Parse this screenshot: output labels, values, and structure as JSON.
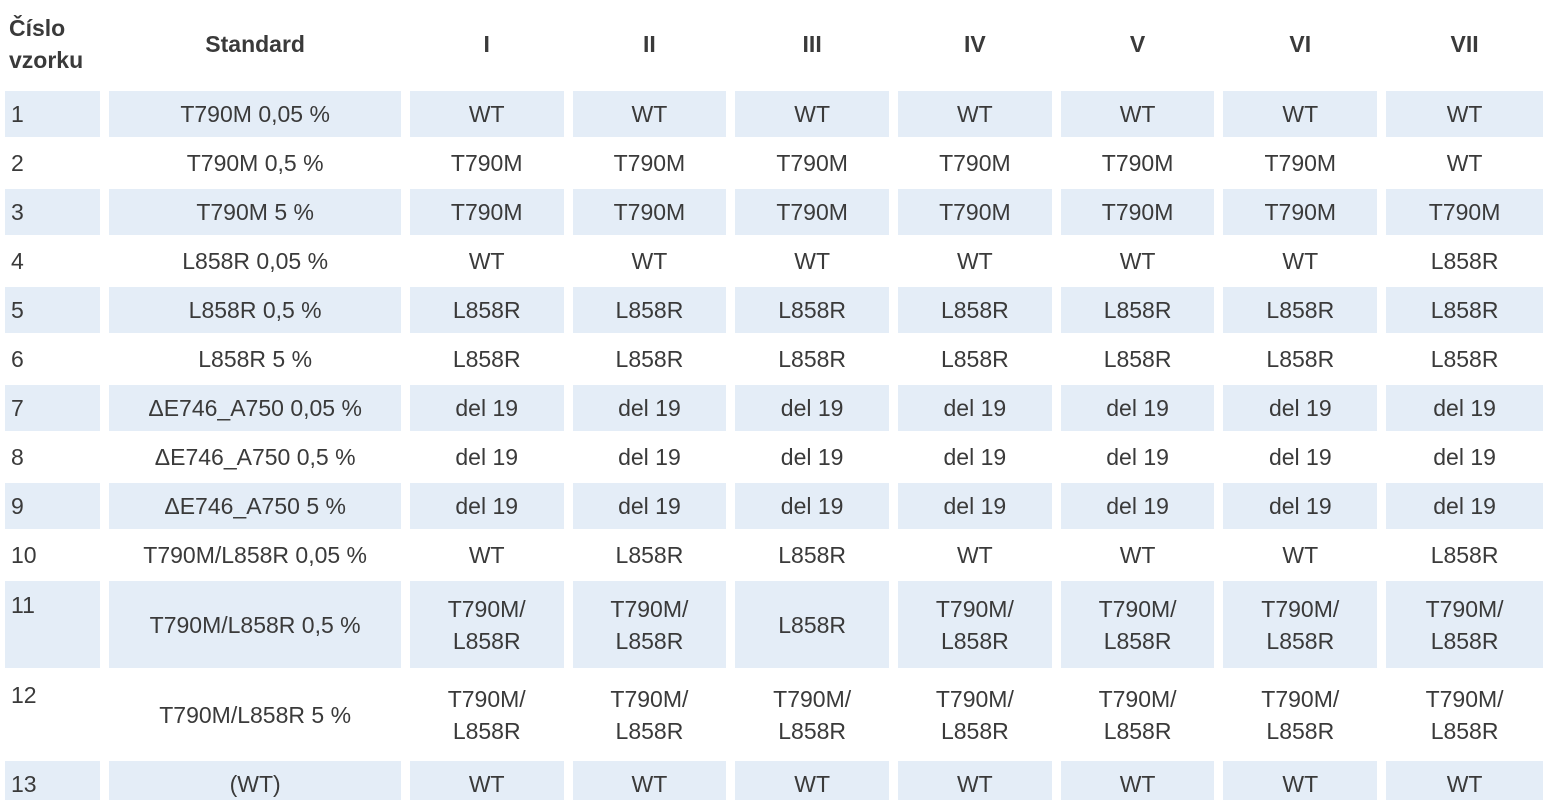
{
  "table": {
    "header": [
      "Číslo\nvzorku",
      "Standard",
      "I",
      "II",
      "III",
      "IV",
      "V",
      "VI",
      "VII"
    ],
    "rows": [
      [
        "1",
        "T790M 0,05 %",
        "WT",
        "WT",
        "WT",
        "WT",
        "WT",
        "WT",
        "WT"
      ],
      [
        "2",
        "T790M 0,5 %",
        "T790M",
        "T790M",
        "T790M",
        "T790M",
        "T790M",
        "T790M",
        "WT"
      ],
      [
        "3",
        "T790M 5 %",
        "T790M",
        "T790M",
        "T790M",
        "T790M",
        "T790M",
        "T790M",
        "T790M"
      ],
      [
        "4",
        "L858R 0,05 %",
        "WT",
        "WT",
        "WT",
        "WT",
        "WT",
        "WT",
        "L858R"
      ],
      [
        "5",
        "L858R 0,5 %",
        "L858R",
        "L858R",
        "L858R",
        "L858R",
        "L858R",
        "L858R",
        "L858R"
      ],
      [
        "6",
        "L858R 5 %",
        "L858R",
        "L858R",
        "L858R",
        "L858R",
        "L858R",
        "L858R",
        "L858R"
      ],
      [
        "7",
        "ΔE746_A750 0,05 %",
        "del 19",
        "del 19",
        "del 19",
        "del 19",
        "del 19",
        "del 19",
        "del 19"
      ],
      [
        "8",
        "ΔE746_A750 0,5 %",
        "del 19",
        "del 19",
        "del 19",
        "del 19",
        "del 19",
        "del 19",
        "del 19"
      ],
      [
        "9",
        "ΔE746_A750 5 %",
        "del 19",
        "del 19",
        "del 19",
        "del 19",
        "del 19",
        "del 19",
        "del 19"
      ],
      [
        "10",
        "T790M/L858R 0,05 %",
        "WT",
        "L858R",
        "L858R",
        "WT",
        "WT",
        "WT",
        "L858R"
      ],
      [
        "11",
        "T790M/L858R 0,5 %",
        "T790M/\nL858R",
        "T790M/\nL858R",
        "L858R",
        "T790M/\nL858R",
        "T790M/\nL858R",
        "T790M/\nL858R",
        "T790M/\nL858R"
      ],
      [
        "12",
        "T790M/L858R 5 %",
        "T790M/\nL858R",
        "T790M/\nL858R",
        "T790M/\nL858R",
        "T790M/\nL858R",
        "T790M/\nL858R",
        "T790M/\nL858R",
        "T790M/\nL858R"
      ],
      [
        "13",
        "(WT)",
        "WT",
        "WT",
        "WT",
        "WT",
        "WT",
        "WT",
        "WT"
      ]
    ]
  }
}
